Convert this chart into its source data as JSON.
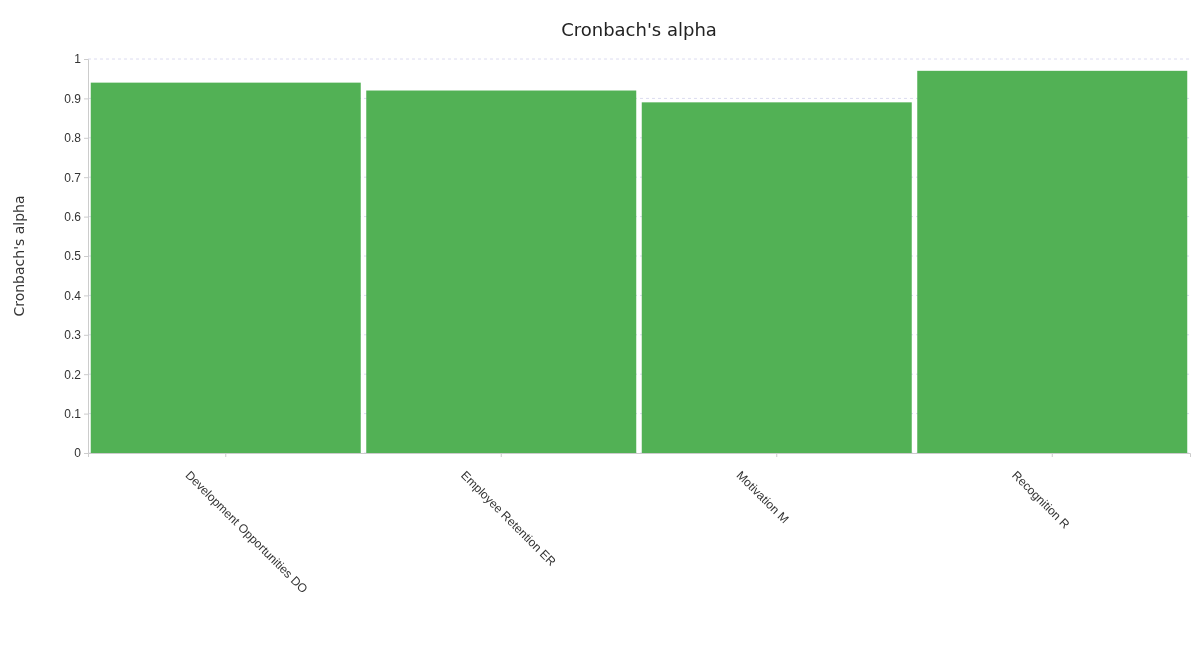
{
  "chart_data": {
    "type": "bar",
    "title": "Cronbach's alpha",
    "ylabel": "Cronbach's alpha",
    "categories": [
      "Development Opportunities DO",
      "Employee Retention ER",
      "Motivation M",
      "Recognition R"
    ],
    "values": [
      0.94,
      0.92,
      0.89,
      0.97
    ],
    "color": "#52b155",
    "ylim": [
      0,
      1
    ],
    "yticks": [
      0,
      0.1,
      0.2,
      0.3,
      0.4,
      0.5,
      0.6,
      0.7,
      0.8,
      0.9,
      1
    ],
    "grid": "y"
  }
}
